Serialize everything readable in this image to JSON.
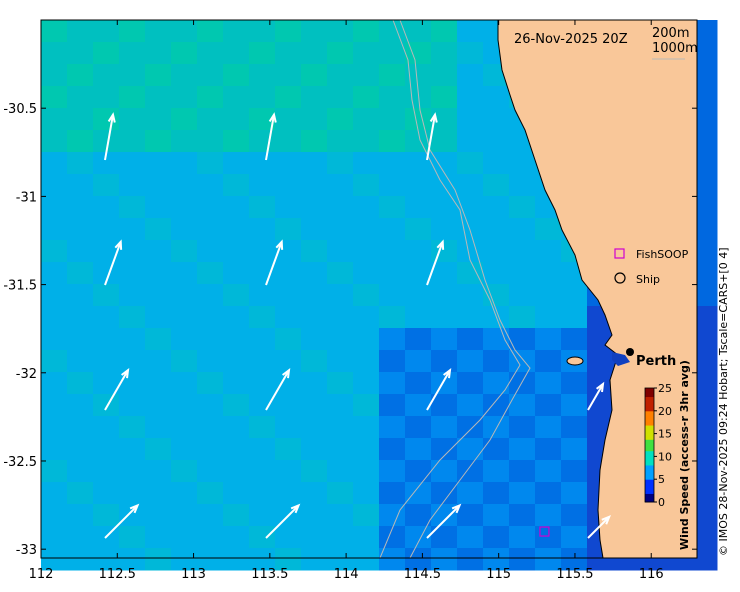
{
  "title": "26-Nov-2025 20Z",
  "contours": {
    "c200": "200m",
    "c1000": "1000m"
  },
  "legend": {
    "fishsoop": "FishSOOP",
    "ship": "Ship"
  },
  "city": "Perth",
  "colorbar": {
    "title": "Wind Speed (access-r 3hr avg)",
    "ticks": [
      "0",
      "5",
      "10",
      "15",
      "20",
      "25"
    ],
    "min": 0,
    "max": 25
  },
  "credit": "© IMOS 28-Nov-2025 09:24 Hobart; Tscale=CARS+[0 4]",
  "axes": {
    "x_ticks": [
      "112",
      "112.5",
      "113",
      "113.5",
      "114",
      "114.5",
      "115",
      "115.5",
      "116"
    ],
    "y_ticks": [
      "-30.5",
      "-31",
      "-31.5",
      "-32",
      "-32.5",
      "-33"
    ],
    "lon_range": [
      112,
      116.3
    ],
    "lat_range": [
      -33.05,
      -30.0
    ]
  },
  "colors": {
    "land": "#f9c799",
    "ocean_light": "#00cccc",
    "ocean_mid": "#00aaee",
    "ocean_dark": "#1040c0"
  },
  "fishsoop_position": {
    "lon": 115.3,
    "lat": -32.9
  }
}
